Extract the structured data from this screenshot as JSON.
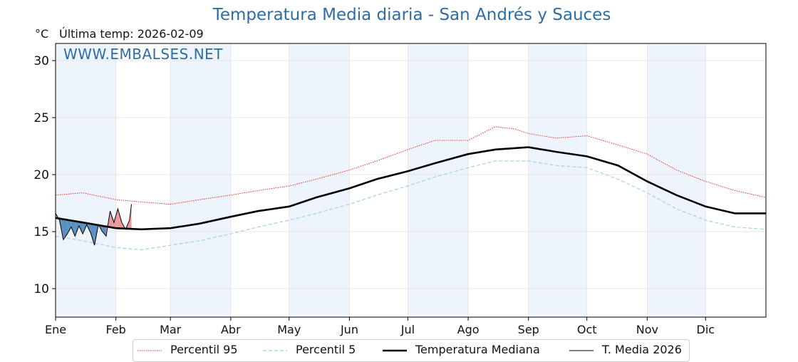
{
  "header": {
    "title": "Temperatura Media diaria - San Andrés y Sauces",
    "unit": "°C",
    "last_temp": "Última temp: 2026-02-09",
    "watermark": "WWW.EMBALSES.NET"
  },
  "colors": {
    "title": "#2e6da4",
    "p95": "#e8302a",
    "p5": "#9fd3e3",
    "median": "#000000",
    "media2026": "#000000",
    "below_fill": "#5b8fbf",
    "above_fill": "#e99a9c",
    "month_band": "#eef4fb"
  },
  "legend": [
    {
      "key": "p95",
      "label": "Percentil 95"
    },
    {
      "key": "p5",
      "label": "Percentil 5"
    },
    {
      "key": "median",
      "label": "Temperatura Mediana"
    },
    {
      "key": "media2026",
      "label": "T. Media 2026"
    }
  ],
  "chart_data": {
    "type": "line",
    "title": "Temperatura Media diaria - San Andrés y Sauces",
    "ylabel": "°C",
    "xlabel": "",
    "xlim": [
      1,
      366
    ],
    "ylim": [
      7.5,
      31.5
    ],
    "yticks": [
      10,
      15,
      20,
      25,
      30
    ],
    "months": [
      {
        "label": "Ene",
        "day": 1
      },
      {
        "label": "Feb",
        "day": 32
      },
      {
        "label": "Mar",
        "day": 60
      },
      {
        "label": "Abr",
        "day": 91
      },
      {
        "label": "May",
        "day": 121
      },
      {
        "label": "Jun",
        "day": 152
      },
      {
        "label": "Jul",
        "day": 182
      },
      {
        "label": "Ago",
        "day": 213
      },
      {
        "label": "Sep",
        "day": 244
      },
      {
        "label": "Oct",
        "day": 274
      },
      {
        "label": "Nov",
        "day": 305
      },
      {
        "label": "Dic",
        "day": 335
      }
    ],
    "grid": true,
    "legend_position": "bottom",
    "series": [
      {
        "name": "Percentil 95",
        "style": "dotted",
        "x": [
          1,
          15,
          32,
          45,
          60,
          75,
          91,
          105,
          121,
          135,
          152,
          166,
          182,
          196,
          213,
          227,
          237,
          244,
          258,
          274,
          290,
          305,
          320,
          335,
          350,
          366
        ],
        "y": [
          18.2,
          18.4,
          17.8,
          17.6,
          17.4,
          17.8,
          18.2,
          18.6,
          19.0,
          19.6,
          20.4,
          21.2,
          22.2,
          23.0,
          23.0,
          24.2,
          24.0,
          23.6,
          23.2,
          23.4,
          22.6,
          21.8,
          20.4,
          19.4,
          18.6,
          18.0
        ]
      },
      {
        "name": "Percentil 5",
        "style": "dashed",
        "x": [
          1,
          15,
          32,
          45,
          60,
          75,
          91,
          105,
          121,
          135,
          152,
          166,
          182,
          196,
          213,
          227,
          244,
          258,
          274,
          290,
          305,
          320,
          335,
          350,
          366
        ],
        "y": [
          14.6,
          14.2,
          13.6,
          13.4,
          13.8,
          14.2,
          14.8,
          15.4,
          16.0,
          16.6,
          17.4,
          18.2,
          19.0,
          19.8,
          20.6,
          21.2,
          21.2,
          20.8,
          20.6,
          19.6,
          18.4,
          17.0,
          16.0,
          15.4,
          15.2
        ]
      },
      {
        "name": "Temperatura Mediana",
        "style": "solid-thick",
        "x": [
          1,
          15,
          32,
          45,
          60,
          75,
          91,
          105,
          121,
          135,
          152,
          166,
          182,
          196,
          213,
          227,
          244,
          258,
          274,
          290,
          305,
          320,
          335,
          350,
          366
        ],
        "y": [
          16.2,
          15.8,
          15.3,
          15.2,
          15.3,
          15.7,
          16.3,
          16.8,
          17.2,
          18.0,
          18.8,
          19.6,
          20.3,
          21.0,
          21.8,
          22.2,
          22.4,
          22.0,
          21.6,
          20.8,
          19.4,
          18.2,
          17.2,
          16.6,
          16.6
        ]
      },
      {
        "name": "T. Media 2026",
        "style": "solid-thin",
        "x": [
          1,
          3,
          5,
          7,
          9,
          11,
          13,
          15,
          17,
          19,
          21,
          23,
          25,
          27,
          29,
          31,
          33,
          35,
          37,
          39,
          40
        ],
        "y": [
          16.6,
          16.0,
          14.3,
          14.8,
          15.4,
          14.6,
          15.5,
          14.8,
          15.6,
          14.9,
          13.8,
          15.6,
          15.0,
          14.6,
          16.8,
          15.8,
          17.0,
          15.8,
          15.2,
          16.0,
          17.4
        ]
      }
    ]
  }
}
